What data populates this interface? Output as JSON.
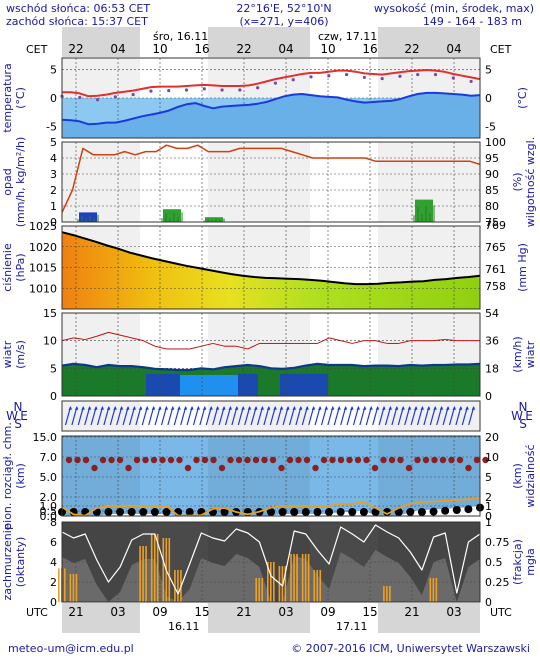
{
  "header": {
    "sunrise": "wschód słońca: 06:53 CET",
    "sunset": "zachód słońca: 15:37 CET",
    "coords": "22°16'E, 52°10'N",
    "grid": "(x=271,  y=406)",
    "elev_title": "wysokość (min, środek, max)",
    "elev_values": "149 - 164 - 183 m"
  },
  "timezone_top": "CET",
  "timezone_bottom": "UTC",
  "days_top": [
    "śro, 16.11",
    "czw, 17.11"
  ],
  "hours_top": [
    "22",
    "04",
    "10",
    "16",
    "22",
    "04",
    "10",
    "16",
    "22",
    "04"
  ],
  "hours_bottom": [
    "21",
    "03",
    "09",
    "15",
    "21",
    "03",
    "09",
    "15",
    "21",
    "03"
  ],
  "days_bottom": [
    "16.11",
    "17.11"
  ],
  "footer": {
    "email": "meteo-um@icm.edu.pl",
    "copyright": "© 2007-2016 ICM, Uniwersytet Warszawski"
  },
  "panels": {
    "temperature": {
      "left_label": [
        "temperatura",
        "(°C)"
      ],
      "right_label": [
        "(°C)"
      ],
      "left_ticks": [
        "5",
        "0",
        "-5"
      ],
      "right_ticks": [
        "5",
        "0",
        "-5"
      ]
    },
    "precip": {
      "left_label": [
        "opad",
        "(mm/h, kg/m²/h)"
      ],
      "right_label": [
        "(%)",
        "wilgotność wzgl."
      ],
      "left_ticks": [
        "5",
        "4",
        "3",
        "2",
        "1",
        "0"
      ],
      "right_ticks": [
        "100",
        "95",
        "90",
        "85",
        "80",
        "75"
      ]
    },
    "pressure": {
      "left_label": [
        "ciśnienie",
        "(hPa)"
      ],
      "right_label": [
        "(mm Hg)"
      ],
      "left_ticks": [
        "1025",
        "1020",
        "1015",
        "1010"
      ],
      "right_ticks": [
        "769",
        "765",
        "761",
        "758"
      ]
    },
    "wind": {
      "left_label": [
        "wiatr",
        "(m/s)"
      ],
      "right_label": [
        "(km/h)",
        "wiatr"
      ],
      "left_ticks": [
        "15",
        "10",
        "5",
        "0"
      ],
      "right_ticks": [
        "54",
        "36",
        "18",
        "0"
      ]
    },
    "direction": {
      "left_label": [
        "W",
        "N",
        "S",
        "E"
      ],
      "right_label": [
        "W",
        "N",
        "S",
        "E"
      ]
    },
    "visibility": {
      "left_label": [
        "pion. rozciągł. chm.",
        "(km)"
      ],
      "right_label": [
        "(km)",
        "widzialność"
      ],
      "left_ticks": [
        "15.0",
        "7.0",
        "5.0",
        "2.0",
        "1.0",
        "0.5",
        "0.0"
      ],
      "right_ticks": [
        "20",
        "10",
        "5",
        "2",
        "1",
        "0"
      ]
    },
    "clouds": {
      "left_label": [
        "zachmurzenie",
        "(oktanty)"
      ],
      "right_label": [
        "(frakcja)",
        "mgła"
      ],
      "left_ticks": [
        "8",
        "6",
        "4",
        "2",
        "0"
      ],
      "right_ticks": [
        "1",
        "0.75",
        "0.5",
        "0.25",
        "0"
      ]
    }
  },
  "colors": {
    "temp_line": "#e03030",
    "dew_line": "#1a3adc",
    "humidity_line": "#d04010",
    "pressure_line": "#000000",
    "wind_line": "#c01010",
    "visibility_line": "#e8a020",
    "fog_bars": "#f0a020"
  },
  "chart_data": [
    {
      "type": "line",
      "panel": "temperature",
      "ylim": [
        -7,
        7
      ],
      "series": [
        {
          "values": [
            1.0,
            1.0,
            0.8,
            0.3,
            0.4,
            0.6,
            0.9,
            1.1,
            1.3,
            1.6,
            1.9,
            2.0,
            2.0,
            2.0,
            2.1,
            2.2,
            2.3,
            2.2,
            2.1,
            2.1,
            2.1,
            2.2,
            2.5,
            2.9,
            3.3,
            3.6,
            3.9,
            4.2,
            4.4,
            4.4,
            4.6,
            4.8,
            4.8,
            4.6,
            4.3,
            4.2,
            4.1,
            4.3,
            4.5,
            4.7,
            4.8,
            4.9,
            4.8,
            4.6,
            4.2,
            3.9,
            3.6,
            3.3
          ]
        },
        {
          "values": [
            -3.8,
            -3.9,
            -4.1,
            -4.6,
            -4.5,
            -4.3,
            -4.3,
            -4.0,
            -3.6,
            -3.2,
            -2.9,
            -2.6,
            -2.2,
            -1.6,
            -1.1,
            -0.9,
            -1.4,
            -1.8,
            -1.5,
            -1.4,
            -1.3,
            -1.2,
            -1.0,
            -0.7,
            -0.2,
            0.3,
            0.6,
            0.7,
            0.5,
            0.3,
            0.2,
            0.1,
            -0.3,
            -0.6,
            -0.8,
            -0.7,
            -0.6,
            -0.5,
            -0.2,
            0.3,
            0.7,
            0.9,
            0.9,
            0.8,
            0.7,
            0.6,
            0.4,
            0.5
          ]
        }
      ]
    },
    {
      "type": "bar",
      "panel": "precip",
      "ylim": [
        0,
        5
      ],
      "categories": [
        "21",
        "03",
        "09",
        "15",
        "21",
        "03",
        "09",
        "15",
        "21",
        "03"
      ],
      "values": [
        0.6,
        0.0,
        0.8,
        0.3,
        0.0,
        0.0,
        0.0,
        0.0,
        1.4,
        0.0
      ],
      "humidity": [
        78,
        85,
        98,
        96,
        96,
        96,
        97,
        96,
        97,
        97,
        99,
        98,
        98,
        99,
        97,
        97,
        97,
        98,
        98,
        98,
        98,
        98,
        97,
        96,
        95,
        95,
        95,
        95,
        95,
        95,
        94,
        94,
        94,
        94,
        94,
        94,
        94,
        94,
        94,
        94,
        93
      ]
    },
    {
      "type": "area",
      "panel": "pressure",
      "ylim": [
        1005,
        1025
      ],
      "values": [
        1023.5,
        1022.8,
        1022.0,
        1021.2,
        1020.3,
        1019.5,
        1018.6,
        1017.9,
        1017.2,
        1016.6,
        1016.0,
        1015.4,
        1014.9,
        1014.4,
        1013.9,
        1013.4,
        1013.0,
        1012.7,
        1012.5,
        1012.4,
        1012.3,
        1012.2,
        1012.0,
        1011.8,
        1011.5,
        1011.2,
        1011.0,
        1011.0,
        1011.1,
        1011.3,
        1011.4,
        1011.6,
        1011.7,
        1012.0,
        1012.2,
        1012.5,
        1012.7,
        1013.0
      ]
    },
    {
      "type": "area",
      "panel": "wind",
      "ylim": [
        0,
        15
      ],
      "series": [
        {
          "values": [
            5.5,
            5.8,
            5.6,
            5.2,
            5.6,
            5.4,
            5.4,
            5.2,
            4.9,
            4.8,
            4.7,
            4.7,
            5.0,
            4.8,
            5.2,
            5.4,
            5.6,
            5.4,
            5.0,
            4.9,
            5.1,
            5.5,
            5.8,
            5.6,
            5.6,
            5.6,
            5.4,
            5.5,
            5.5,
            5.4,
            5.6,
            5.5,
            5.6,
            5.6,
            5.7,
            5.7,
            5.8
          ]
        },
        {
          "values": [
            10.0,
            10.5,
            10.2,
            10.8,
            11.5,
            11.0,
            10.5,
            10.0,
            9.0,
            8.5,
            8.5,
            8.5,
            9.0,
            9.5,
            9.0,
            9.0,
            8.5,
            9.5,
            9.5,
            9.5,
            9.5,
            9.5,
            9.5,
            10.5,
            10.0,
            9.5,
            10.0,
            10.0,
            9.5,
            9.5,
            10.0,
            10.0,
            10.0,
            10.2,
            10.0,
            10.0,
            10.0
          ]
        }
      ]
    },
    {
      "type": "line",
      "panel": "visibility",
      "ylim": [
        0,
        20
      ],
      "series": [
        {
          "values": [
            2.2,
            0.4,
            0.1,
            2.0,
            2.5,
            2.5,
            2.5,
            2.5,
            2.5,
            2.5,
            0.1,
            0.1,
            0.2,
            1.8,
            2.0,
            1.0,
            0.4,
            1.1,
            2.1,
            2.5,
            2.5,
            2.5,
            2.5,
            2.5,
            3.0,
            3.0,
            3.5,
            2.0,
            0.5,
            2.0,
            3.0,
            3.5,
            3.6,
            3.8,
            4.0,
            4.2,
            4.6
          ]
        }
      ]
    },
    {
      "type": "bar",
      "panel": "clouds",
      "ylim": [
        0,
        8
      ],
      "series": [
        {
          "values": [
            7.0,
            6.4,
            6.8,
            4.2,
            2.0,
            3.5,
            6.2,
            6.8,
            6.8,
            3.1,
            0.8,
            3.8,
            6.9,
            6.4,
            6.1,
            7.3,
            6.9,
            6.0,
            2.6,
            1.6,
            7.1,
            6.8,
            5.2,
            3.8,
            7.5,
            6.8,
            6.0,
            7.7,
            7.0,
            6.4,
            5.0,
            3.2,
            6.5,
            6.9,
            0.9,
            6.0,
            6.8
          ]
        },
        {
          "values": [
            0.42,
            0.35,
            0.0,
            0.0,
            0.0,
            0.0,
            0.0,
            0.7,
            0.85,
            0.8,
            0.4,
            0.0,
            0.0,
            0.0,
            0.0,
            0.0,
            0.0,
            0.3,
            0.5,
            0.45,
            0.6,
            0.6,
            0.4,
            0.0,
            0.0,
            0.0,
            0.0,
            0.0,
            0.2,
            0.0,
            0.0,
            0.0,
            0.3,
            0.0,
            0.0,
            0.0,
            0.0
          ]
        }
      ]
    }
  ]
}
